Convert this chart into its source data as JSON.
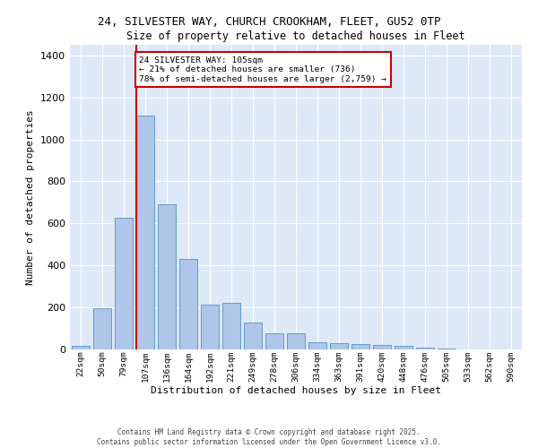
{
  "title_line1": "24, SILVESTER WAY, CHURCH CROOKHAM, FLEET, GU52 0TP",
  "title_line2": "Size of property relative to detached houses in Fleet",
  "xlabel": "Distribution of detached houses by size in Fleet",
  "ylabel": "Number of detached properties",
  "categories": [
    "22sqm",
    "50sqm",
    "79sqm",
    "107sqm",
    "136sqm",
    "164sqm",
    "192sqm",
    "221sqm",
    "249sqm",
    "278sqm",
    "306sqm",
    "334sqm",
    "363sqm",
    "391sqm",
    "420sqm",
    "448sqm",
    "476sqm",
    "505sqm",
    "533sqm",
    "562sqm",
    "590sqm"
  ],
  "values": [
    15,
    195,
    625,
    1115,
    690,
    430,
    215,
    220,
    130,
    75,
    75,
    35,
    30,
    25,
    20,
    15,
    10,
    5,
    2,
    1,
    0
  ],
  "bar_color": "#aec6e8",
  "bar_edge_color": "#6699cc",
  "fig_bg_color": "#ffffff",
  "ax_bg_color": "#dde9f7",
  "grid_color": "#ffffff",
  "vline_color": "#cc0000",
  "annotation_line1": "24 SILVESTER WAY: 105sqm",
  "annotation_line2": "← 21% of detached houses are smaller (736)",
  "annotation_line3": "78% of semi-detached houses are larger (2,759) →",
  "annotation_box_edgecolor": "#cc0000",
  "footer_text": "Contains HM Land Registry data © Crown copyright and database right 2025.\nContains public sector information licensed under the Open Government Licence v3.0.",
  "ylim": [
    0,
    1450
  ],
  "yticks": [
    0,
    200,
    400,
    600,
    800,
    1000,
    1200,
    1400
  ],
  "vline_index": 2.575
}
